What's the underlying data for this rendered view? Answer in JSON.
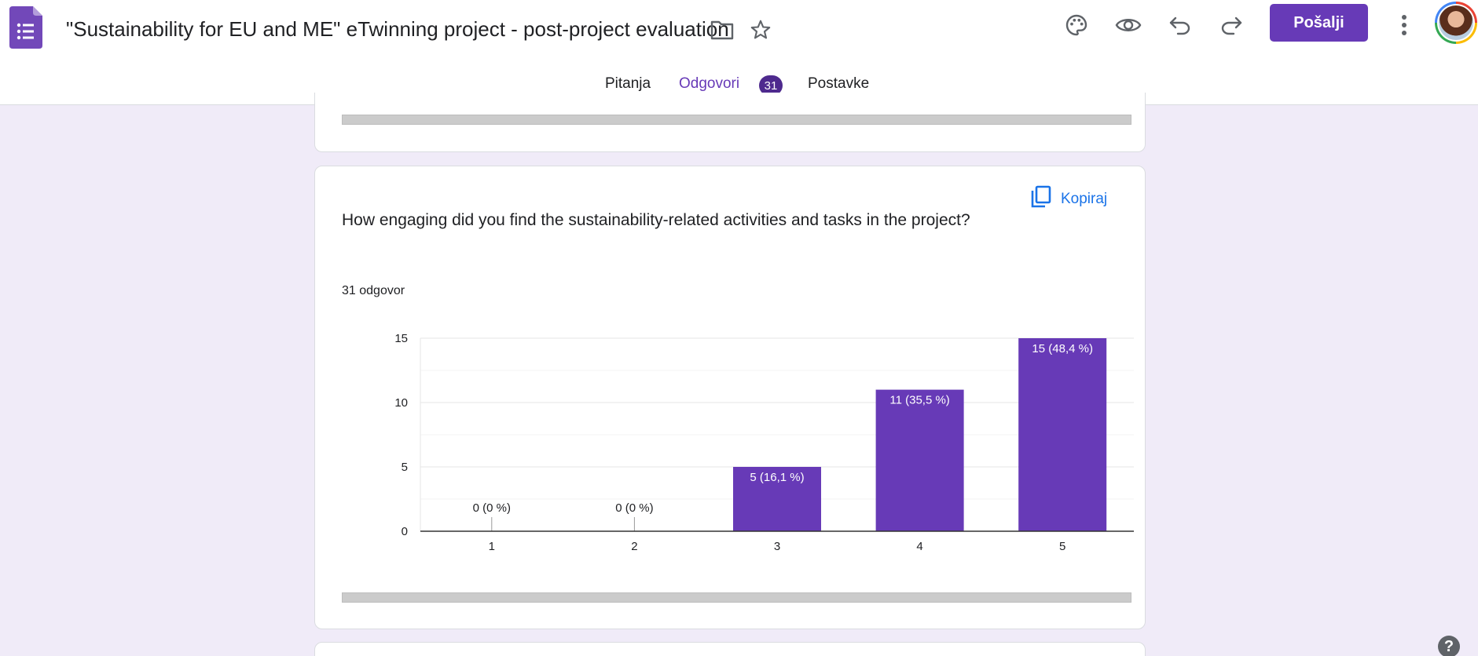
{
  "header": {
    "title": "\"Sustainability for EU and ME\" eTwinning project - post-project evaluation",
    "send_label": "Pošalji",
    "icons": [
      "forms-logo-icon",
      "folder-icon",
      "star-icon",
      "palette-icon",
      "preview-eye-icon",
      "undo-icon",
      "redo-icon",
      "more-vert-icon",
      "avatar"
    ]
  },
  "tabs": [
    {
      "label": "Pitanja"
    },
    {
      "label": "Odgovori",
      "badge": "31",
      "active": true
    },
    {
      "label": "Postavke"
    }
  ],
  "colors": {
    "accent": "#673ab7",
    "bar": "#673ab7",
    "link": "#1a73e8",
    "background": "#f0ebf8"
  },
  "question_card": {
    "question": "How engaging did you find the sustainability-related activities and tasks in the project?",
    "responses": "31 odgovor",
    "copy_label": "Kopiraj"
  },
  "chart_data": {
    "type": "bar",
    "categories": [
      "1",
      "2",
      "3",
      "4",
      "5"
    ],
    "values": [
      0,
      0,
      5,
      11,
      15
    ],
    "data_labels": [
      "0 (0 %)",
      "0 (0 %)",
      "5 (16,1 %)",
      "11 (35,5 %)",
      "15 (48,4 %)"
    ],
    "y_ticks": [
      "0",
      "5",
      "10",
      "15"
    ],
    "ylim": [
      0,
      15
    ],
    "grid": true
  },
  "help": {
    "label": "?"
  }
}
